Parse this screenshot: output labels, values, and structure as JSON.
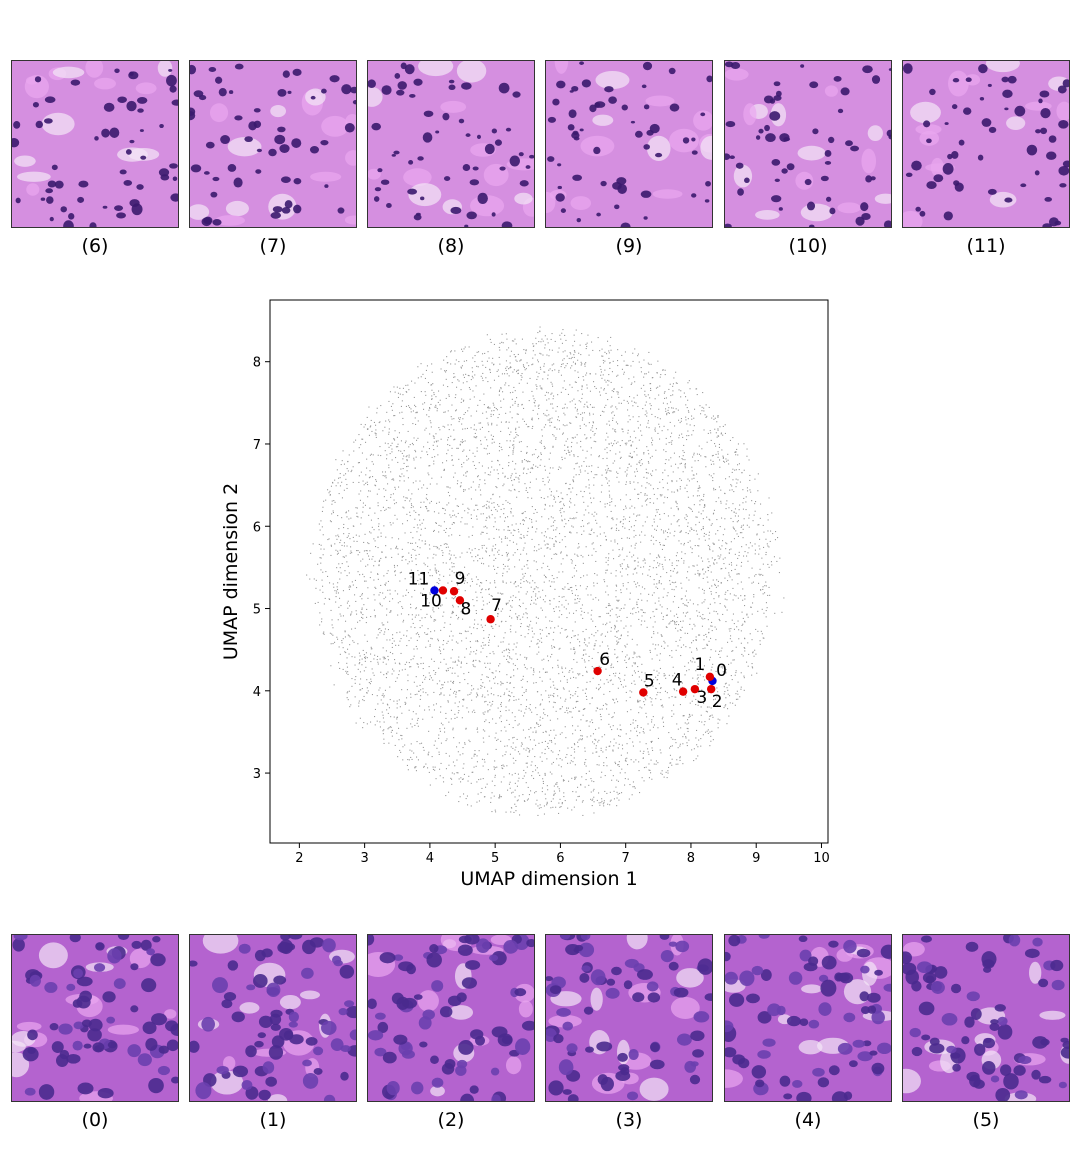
{
  "tiles": {
    "top": [
      {
        "label": "(6)",
        "tone": "light"
      },
      {
        "label": "(7)",
        "tone": "light"
      },
      {
        "label": "(8)",
        "tone": "light"
      },
      {
        "label": "(9)",
        "tone": "light"
      },
      {
        "label": "(10)",
        "tone": "light"
      },
      {
        "label": "(11)",
        "tone": "light"
      }
    ],
    "bottom": [
      {
        "label": "(0)",
        "tone": "dense"
      },
      {
        "label": "(1)",
        "tone": "dense"
      },
      {
        "label": "(2)",
        "tone": "dense"
      },
      {
        "label": "(3)",
        "tone": "dense"
      },
      {
        "label": "(4)",
        "tone": "dense"
      },
      {
        "label": "(5)",
        "tone": "dense"
      }
    ]
  },
  "colors": {
    "tissue_light": "#d58fe0",
    "tissue_dense": "#b463cf",
    "nucleus": "#3b1a6e",
    "background_points": "#9a9a9a",
    "highlight_red": "#e00000",
    "highlight_blue": "#0000dd"
  },
  "chart_data": {
    "type": "scatter",
    "xlabel": "UMAP dimension 1",
    "ylabel": "UMAP dimension 2",
    "xlim": [
      1.55,
      10.1
    ],
    "ylim": [
      2.15,
      8.75
    ],
    "xticks": [
      2,
      3,
      4,
      5,
      6,
      7,
      8,
      9,
      10
    ],
    "yticks": [
      3,
      4,
      5,
      6,
      7,
      8
    ],
    "grid": false,
    "background_cloud": {
      "description_color": "gray",
      "center": [
        5.75,
        5.45
      ],
      "radius_x": 3.7,
      "radius_y": 3.0,
      "approx_count": 6000
    },
    "points": [
      {
        "label": "0",
        "x": 8.33,
        "y": 4.12,
        "color": "blue"
      },
      {
        "label": "1",
        "x": 8.29,
        "y": 4.17,
        "color": "red"
      },
      {
        "label": "2",
        "x": 8.31,
        "y": 4.02,
        "color": "red"
      },
      {
        "label": "3",
        "x": 8.06,
        "y": 4.02,
        "color": "red"
      },
      {
        "label": "4",
        "x": 7.88,
        "y": 3.99,
        "color": "red"
      },
      {
        "label": "5",
        "x": 7.27,
        "y": 3.98,
        "color": "red"
      },
      {
        "label": "6",
        "x": 6.57,
        "y": 4.24,
        "color": "red"
      },
      {
        "label": "7",
        "x": 4.93,
        "y": 4.87,
        "color": "red"
      },
      {
        "label": "8",
        "x": 4.46,
        "y": 5.1,
        "color": "red"
      },
      {
        "label": "9",
        "x": 4.37,
        "y": 5.21,
        "color": "red"
      },
      {
        "label": "10",
        "x": 4.2,
        "y": 5.22,
        "color": "red"
      },
      {
        "label": "11",
        "x": 4.07,
        "y": 5.22,
        "color": "blue"
      }
    ]
  }
}
